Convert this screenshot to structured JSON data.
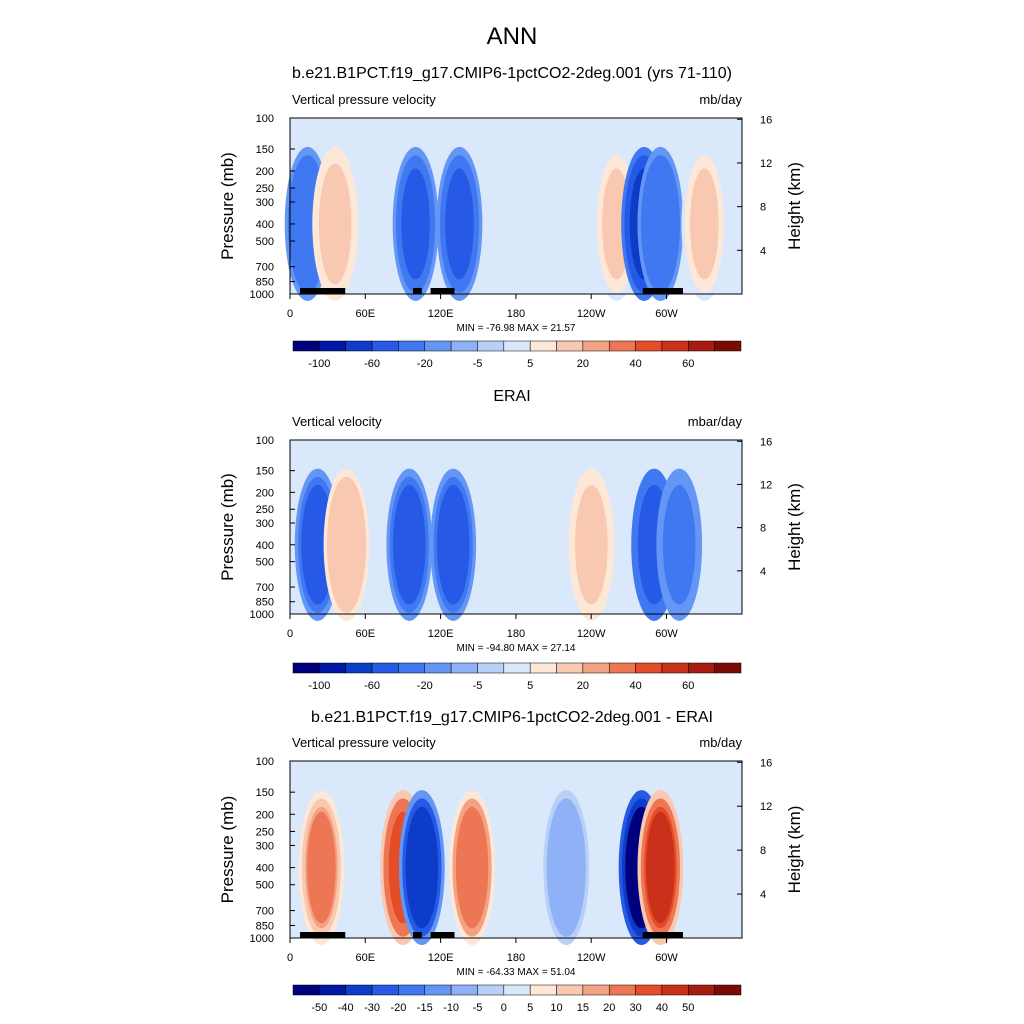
{
  "figure": {
    "main_title": "ANN"
  },
  "chart_data": [
    {
      "type": "heatmap",
      "title": "b.e21.B1PCT.f19_g17.CMIP6-1pctCO2-2deg.001 (yrs 71-110)",
      "left_label": "Vertical pressure velocity",
      "right_label": "mb/day",
      "ylabel": "Pressure (mb)",
      "ylabel_right": "Height (km)",
      "y_ticks": [
        "100",
        "150",
        "200",
        "250",
        "300",
        "400",
        "500",
        "700",
        "850",
        "1000"
      ],
      "y_right_ticks": [
        "4",
        "8",
        "12",
        "16"
      ],
      "x_ticks": [
        "0",
        "60E",
        "120E",
        "180",
        "120W",
        "60W"
      ],
      "x_range": [
        0,
        360
      ],
      "y_range": [
        1000,
        100
      ],
      "stats": "MIN = -76.98  MAX =  21.57",
      "colorbar_labels": [
        "-100",
        "-60",
        "-20",
        "-5",
        "5",
        "20",
        "40",
        "60"
      ],
      "colorbar_levels": [
        -120,
        -100,
        -80,
        -60,
        -40,
        -20,
        -10,
        -5,
        0,
        5,
        10,
        20,
        30,
        40,
        50,
        60,
        70
      ],
      "features": [
        {
          "lon": 14,
          "value": -35
        },
        {
          "lon": 36,
          "value": 15
        },
        {
          "lon": 100,
          "value": -45
        },
        {
          "lon": 135,
          "value": -45
        },
        {
          "lon": 260,
          "value": 10
        },
        {
          "lon": 282,
          "value": -70
        },
        {
          "lon": 295,
          "value": -40
        },
        {
          "lon": 330,
          "value": 10
        }
      ],
      "topography": [
        [
          8,
          44
        ],
        [
          98,
          105
        ],
        [
          112,
          131
        ],
        [
          281,
          313
        ]
      ]
    },
    {
      "type": "heatmap",
      "title": "ERAI",
      "left_label": "Vertical velocity",
      "right_label": "mbar/day",
      "ylabel": "Pressure (mb)",
      "ylabel_right": "Height (km)",
      "y_ticks": [
        "100",
        "150",
        "200",
        "250",
        "300",
        "400",
        "500",
        "700",
        "850",
        "1000"
      ],
      "y_right_ticks": [
        "4",
        "8",
        "12",
        "16"
      ],
      "x_ticks": [
        "0",
        "60E",
        "120E",
        "180",
        "120W",
        "60W"
      ],
      "x_range": [
        0,
        360
      ],
      "y_range": [
        1000,
        100
      ],
      "stats": "MIN = -94.80  MAX =  27.14",
      "colorbar_labels": [
        "-100",
        "-60",
        "-20",
        "-5",
        "5",
        "20",
        "40",
        "60"
      ],
      "colorbar_levels": [
        -120,
        -100,
        -80,
        -60,
        -40,
        -20,
        -10,
        -5,
        0,
        5,
        10,
        20,
        30,
        40,
        50,
        60,
        70
      ],
      "features": [
        {
          "lon": 22,
          "value": -55
        },
        {
          "lon": 45,
          "value": 18
        },
        {
          "lon": 95,
          "value": -55
        },
        {
          "lon": 130,
          "value": -55
        },
        {
          "lon": 240,
          "value": 15
        },
        {
          "lon": 290,
          "value": -60
        },
        {
          "lon": 310,
          "value": -30
        }
      ],
      "topography": []
    },
    {
      "type": "heatmap",
      "title": "b.e21.B1PCT.f19_g17.CMIP6-1pctCO2-2deg.001 - ERAI",
      "left_label": "Vertical pressure velocity",
      "right_label": "mb/day",
      "ylabel": "Pressure (mb)",
      "ylabel_right": "Height (km)",
      "y_ticks": [
        "100",
        "150",
        "200",
        "250",
        "300",
        "400",
        "500",
        "700",
        "850",
        "1000"
      ],
      "y_right_ticks": [
        "4",
        "8",
        "12",
        "16"
      ],
      "x_ticks": [
        "0",
        "60E",
        "120E",
        "180",
        "120W",
        "60W"
      ],
      "x_range": [
        0,
        360
      ],
      "y_range": [
        1000,
        100
      ],
      "stats": "MIN = -64.33  MAX =  51.04",
      "colorbar_labels": [
        "-50",
        "-40",
        "-30",
        "-20",
        "-15",
        "-10",
        "-5",
        "0",
        "5",
        "10",
        "15",
        "20",
        "30",
        "40",
        "50"
      ],
      "colorbar_levels": [
        -60,
        -50,
        -40,
        -30,
        -20,
        -15,
        -10,
        -5,
        0,
        5,
        10,
        15,
        20,
        30,
        40,
        50,
        60
      ],
      "features": [
        {
          "lon": 25,
          "value": 20
        },
        {
          "lon": 90,
          "value": 35
        },
        {
          "lon": 105,
          "value": -40
        },
        {
          "lon": 145,
          "value": 25
        },
        {
          "lon": 220,
          "value": -10
        },
        {
          "lon": 280,
          "value": -60
        },
        {
          "lon": 295,
          "value": 40
        }
      ],
      "topography": [
        [
          8,
          44
        ],
        [
          98,
          105
        ],
        [
          112,
          131
        ],
        [
          281,
          313
        ]
      ]
    }
  ]
}
